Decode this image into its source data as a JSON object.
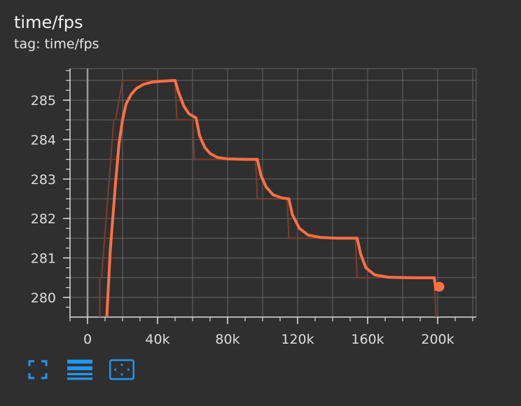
{
  "card": {
    "title": "time/fps",
    "tag": "tag: time/fps"
  },
  "toolbar": {
    "buttons": [
      {
        "icon": "fullscreen-icon"
      },
      {
        "icon": "list-icon"
      },
      {
        "icon": "fit-domain-icon"
      }
    ]
  },
  "colors": {
    "background": "#2f2f2f",
    "smoothed": "#ff7043",
    "raw": "#7a3f2f",
    "grid": "#666666",
    "axis": "#dddddd",
    "toolbar": "#2196f3"
  },
  "chart_data": {
    "type": "line",
    "title": "time/fps",
    "xlabel": "",
    "ylabel": "",
    "xlim": [
      -10000,
      222000
    ],
    "ylim": [
      279.5,
      285.8
    ],
    "x_ticks": [
      0,
      40000,
      80000,
      120000,
      160000,
      200000
    ],
    "x_tick_labels": [
      "0",
      "40k",
      "80k",
      "120k",
      "160k",
      "200k"
    ],
    "y_ticks": [
      280,
      281,
      282,
      283,
      284,
      285
    ],
    "y_tick_labels": [
      "280",
      "281",
      "282",
      "283",
      "284",
      "285"
    ],
    "grid": true,
    "series": [
      {
        "style": "raw",
        "x": [
          7000,
          7000,
          8000,
          15000,
          16000,
          20000,
          21000,
          50000,
          51000,
          60000,
          61000,
          96000,
          97000,
          114000,
          115000,
          153000,
          154000,
          198000,
          199000
        ],
        "values": [
          279.5,
          280.5,
          280.5,
          284.5,
          284.5,
          285.5,
          285.5,
          285.5,
          284.5,
          284.5,
          283.5,
          283.5,
          282.5,
          282.5,
          281.5,
          281.5,
          280.5,
          280.5,
          279.5
        ]
      },
      {
        "style": "smoothed",
        "x": [
          11000,
          13000,
          16000,
          18000,
          20000,
          22000,
          25000,
          28000,
          32000,
          37000,
          42000,
          50000,
          52000,
          55000,
          58000,
          62000,
          64000,
          67000,
          70000,
          74000,
          80000,
          90000,
          97000,
          99000,
          102000,
          106000,
          111000,
          115000,
          117000,
          121000,
          126000,
          133000,
          143000,
          154000,
          156000,
          159000,
          164000,
          172000,
          185000,
          198000,
          199000,
          201000
        ],
        "values": [
          279.5,
          281.2,
          282.9,
          283.9,
          284.5,
          284.9,
          285.15,
          285.3,
          285.4,
          285.46,
          285.48,
          285.5,
          285.2,
          284.85,
          284.65,
          284.55,
          284.1,
          283.8,
          283.65,
          283.55,
          283.51,
          283.5,
          283.5,
          283.1,
          282.8,
          282.6,
          282.52,
          282.5,
          282.1,
          281.75,
          281.58,
          281.52,
          281.5,
          281.5,
          281.1,
          280.75,
          280.57,
          280.51,
          280.5,
          280.5,
          280.2,
          280.27
        ]
      }
    ],
    "last_point": {
      "x": 201000,
      "value": 280.27
    }
  }
}
